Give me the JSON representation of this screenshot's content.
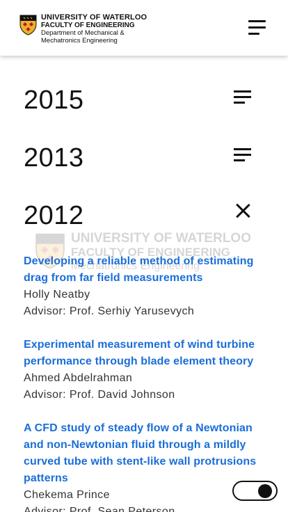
{
  "header": {
    "logo": {
      "line1": "UNIVERSITY OF WATERLOO",
      "line2": "FACULTY OF ENGINEERING",
      "line3": "Department of Mechanical &",
      "line4": "Mechatronics Engineering"
    },
    "menu_icon": "hamburger-menu-icon"
  },
  "watermark": {
    "line1": "UNIVERSITY OF WATERLOO",
    "line2": "FACULTY OF ENGINEERING",
    "line3": "Mechatronics Engineering"
  },
  "years": [
    {
      "label": "2015",
      "state": "collapsed",
      "icon": "expand-menu-icon"
    },
    {
      "label": "2013",
      "state": "collapsed",
      "icon": "expand-menu-icon"
    },
    {
      "label": "2012",
      "state": "expanded",
      "icon": "close-icon"
    }
  ],
  "entries": [
    {
      "title": "Developing a reliable method of estimating drag from far field measurements",
      "author": "Holly Neatby",
      "advisor": "Advisor: Prof. Serhiy Yarusevych"
    },
    {
      "title": "Experimental measurement of wind turbine performance through blade element theory",
      "author": "Ahmed Abdelrahman",
      "advisor": "Advisor: Prof. David Johnson"
    },
    {
      "title": "A CFD study of steady flow of a Newtonian and non-Newtonian fluid through a mildly curved tube with stent-like wall protrusions patterns",
      "author": "Chekema Prince",
      "advisor": "Advisor: Prof. Sean Peterson"
    }
  ],
  "theme_switch": {
    "state": "dark"
  },
  "colors": {
    "link": "#1a6ed8",
    "text": "#333333",
    "shield_gold": "#e8b32a",
    "shield_red": "#c8102e"
  }
}
